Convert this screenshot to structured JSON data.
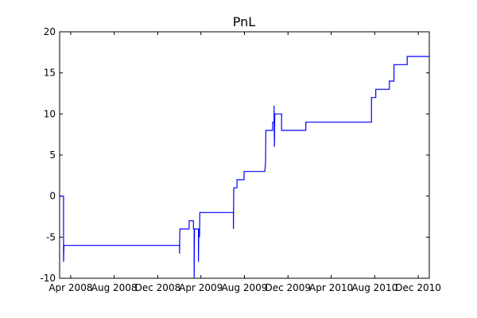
{
  "chart_data": {
    "type": "line",
    "title": "PnL",
    "xlabel": "",
    "ylabel": "",
    "xlim": [
      "2008-03-01",
      "2011-01-01"
    ],
    "ylim": [
      -10,
      20
    ],
    "grid": false,
    "legend": "none",
    "colors": {
      "line": "#0000ff",
      "axes": "#000000"
    },
    "yticks": [
      -10,
      -5,
      0,
      5,
      10,
      15,
      20
    ],
    "xticks": [
      {
        "date": "2008-04-01",
        "label": "Apr 2008"
      },
      {
        "date": "2008-08-01",
        "label": "Aug 2008"
      },
      {
        "date": "2008-12-01",
        "label": "Dec 2008"
      },
      {
        "date": "2009-04-01",
        "label": "Apr 2009"
      },
      {
        "date": "2009-08-01",
        "label": "Aug 2009"
      },
      {
        "date": "2009-12-01",
        "label": "Dec 2009"
      },
      {
        "date": "2010-04-01",
        "label": "Apr 2010"
      },
      {
        "date": "2010-08-01",
        "label": "Aug 2010"
      },
      {
        "date": "2010-12-01",
        "label": "Dec 2010"
      }
    ],
    "series": [
      {
        "color": "#0000ff",
        "points": [
          [
            "2008-03-01",
            0
          ],
          [
            "2008-03-12",
            0
          ],
          [
            "2008-03-12",
            -8
          ],
          [
            "2008-03-13",
            -6
          ],
          [
            "2009-01-31",
            -6
          ],
          [
            "2009-01-31",
            -7
          ],
          [
            "2009-02-01",
            -4
          ],
          [
            "2009-02-27",
            -4
          ],
          [
            "2009-02-27",
            -3
          ],
          [
            "2009-03-11",
            -3
          ],
          [
            "2009-03-11",
            -4
          ],
          [
            "2009-03-13",
            -4
          ],
          [
            "2009-03-13",
            -10
          ],
          [
            "2009-03-14",
            -4
          ],
          [
            "2009-03-25",
            -4
          ],
          [
            "2009-03-25",
            -8
          ],
          [
            "2009-03-26",
            -4
          ],
          [
            "2009-03-28",
            -4
          ],
          [
            "2009-03-28",
            -5
          ],
          [
            "2009-03-29",
            -2
          ],
          [
            "2009-07-01",
            -2
          ],
          [
            "2009-07-01",
            -4
          ],
          [
            "2009-07-02",
            1
          ],
          [
            "2009-07-11",
            1
          ],
          [
            "2009-07-11",
            2
          ],
          [
            "2009-07-31",
            2
          ],
          [
            "2009-07-31",
            3
          ],
          [
            "2009-09-27",
            3
          ],
          [
            "2009-09-29",
            4
          ],
          [
            "2009-09-30",
            8
          ],
          [
            "2009-10-19",
            8
          ],
          [
            "2009-10-19",
            9
          ],
          [
            "2009-10-23",
            9
          ],
          [
            "2009-10-23",
            11
          ],
          [
            "2009-10-24",
            6
          ],
          [
            "2009-10-25",
            10
          ],
          [
            "2009-11-13",
            10
          ],
          [
            "2009-11-13",
            8
          ],
          [
            "2010-01-20",
            8
          ],
          [
            "2010-01-20",
            9
          ],
          [
            "2010-07-23",
            9
          ],
          [
            "2010-07-23",
            12
          ],
          [
            "2010-08-04",
            12
          ],
          [
            "2010-08-04",
            13
          ],
          [
            "2010-09-11",
            13
          ],
          [
            "2010-09-11",
            14
          ],
          [
            "2010-09-24",
            14
          ],
          [
            "2010-09-24",
            16
          ],
          [
            "2010-10-31",
            16
          ],
          [
            "2010-10-31",
            17
          ],
          [
            "2011-01-01",
            17
          ]
        ]
      }
    ]
  }
}
